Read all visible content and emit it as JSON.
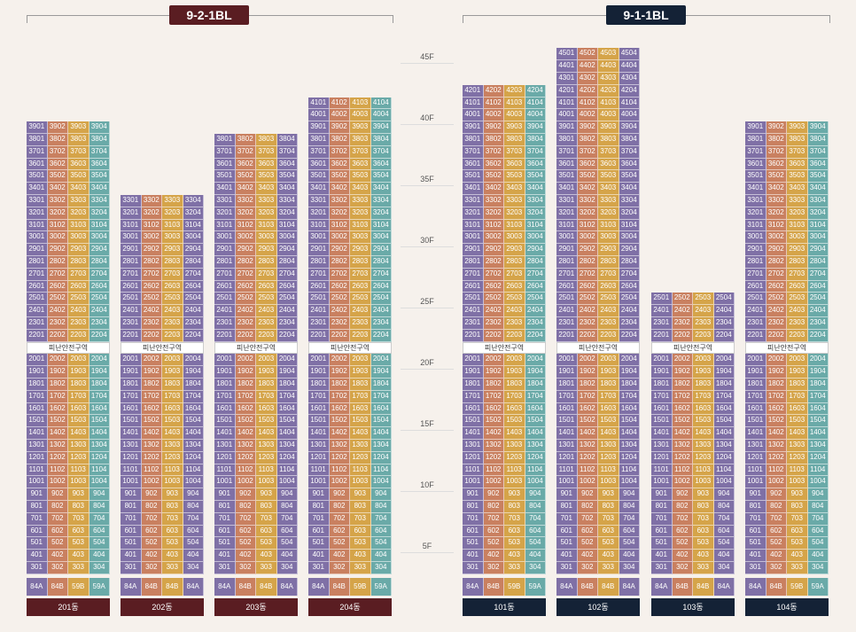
{
  "colors": {
    "unit_1": "#7f70a6",
    "unit_2": "#c98060",
    "unit_3": "#d5a449",
    "unit_4_teal": "#6aaaa8",
    "unit_4_purple": "#7f70a6",
    "block_a": "#5a1d22",
    "block_b": "#142236"
  },
  "blocks": [
    {
      "label": "9-2-1BL",
      "theme": "a"
    },
    {
      "label": "9-1-1BL",
      "theme": "b"
    }
  ],
  "floor_labels": [
    "45F",
    "40F",
    "35F",
    "30F",
    "25F",
    "20F",
    "15F",
    "10F",
    "5F"
  ],
  "refuge_label": "피난안전구역",
  "buildings": [
    {
      "name": "201동",
      "top_floor": 39,
      "theme": "a",
      "col4": "teal",
      "types": [
        "84A",
        "84B",
        "59B",
        "59A"
      ]
    },
    {
      "name": "202동",
      "top_floor": 33,
      "theme": "a",
      "col4": "purple",
      "types": [
        "84A",
        "84B",
        "84B",
        "84A"
      ]
    },
    {
      "name": "203동",
      "top_floor": 38,
      "theme": "a",
      "col4": "purple",
      "types": [
        "84A",
        "84B",
        "84B",
        "84A"
      ]
    },
    {
      "name": "204동",
      "top_floor": 41,
      "theme": "a",
      "col4": "teal",
      "types": [
        "84A",
        "84B",
        "59B",
        "59A"
      ]
    },
    {
      "name": "101동",
      "top_floor": 42,
      "theme": "b",
      "col4": "teal",
      "types": [
        "84A",
        "84B",
        "59B",
        "59A"
      ]
    },
    {
      "name": "102동",
      "top_floor": 45,
      "theme": "b",
      "col4": "purple",
      "types": [
        "84A",
        "84B",
        "84B",
        "84A"
      ]
    },
    {
      "name": "103동",
      "top_floor": 25,
      "theme": "b",
      "col4": "purple",
      "types": [
        "84A",
        "84B",
        "84B",
        "84A"
      ]
    },
    {
      "name": "104동",
      "top_floor": 39,
      "theme": "b",
      "col4": "teal",
      "types": [
        "84A",
        "84B",
        "59B",
        "59A"
      ]
    }
  ]
}
